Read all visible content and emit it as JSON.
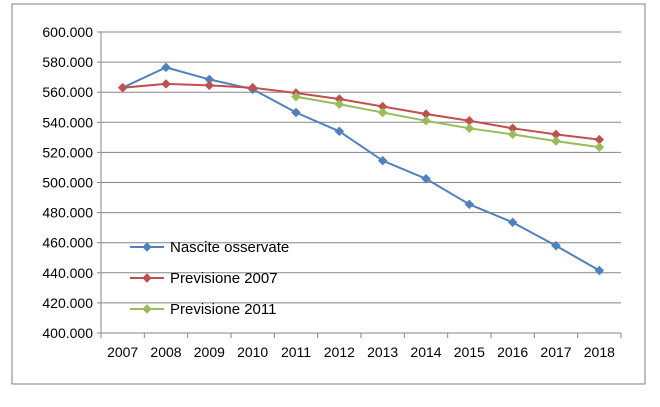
{
  "chart_data": {
    "type": "line",
    "categories": [
      "2007",
      "2008",
      "2009",
      "2010",
      "2011",
      "2012",
      "2013",
      "2014",
      "2015",
      "2016",
      "2017",
      "2018"
    ],
    "ylim": [
      400000,
      600000
    ],
    "ytick_values": [
      400000,
      420000,
      440000,
      460000,
      480000,
      500000,
      520000,
      540000,
      560000,
      580000,
      600000
    ],
    "ytick_labels": [
      "400.000",
      "420.000",
      "440.000",
      "460.000",
      "480.000",
      "500.000",
      "520.000",
      "540.000",
      "560.000",
      "580.000",
      "600.000"
    ],
    "grid": true,
    "legend_position": "lower-left",
    "series": [
      {
        "name": "Nascite osservate",
        "color": "#4F81BD",
        "values": [
          563000,
          576500,
          568500,
          562000,
          546500,
          534000,
          514500,
          502500,
          485500,
          473500,
          458000,
          441500
        ]
      },
      {
        "name": "Previsione 2007",
        "color": "#C0504D",
        "values": [
          563000,
          565500,
          564500,
          563000,
          559500,
          555500,
          550500,
          545500,
          541000,
          536000,
          532000,
          528500
        ]
      },
      {
        "name": "Previsione 2011",
        "color": "#9BBB59",
        "values": [
          null,
          null,
          null,
          null,
          557000,
          552000,
          546500,
          541000,
          536000,
          532000,
          527500,
          523500
        ]
      }
    ]
  }
}
